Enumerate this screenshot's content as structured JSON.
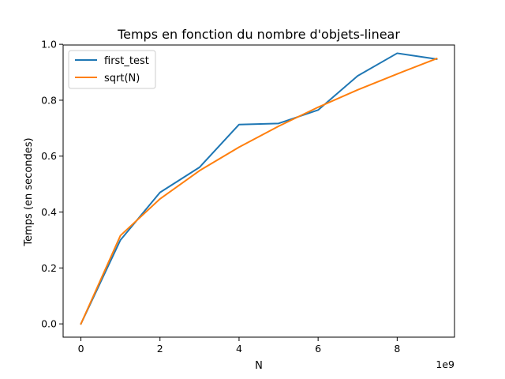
{
  "chart_data": {
    "type": "line",
    "title": "Temps en fonction du nombre d'objets-linear",
    "xlabel": "N",
    "ylabel": "Temps (en secondes)",
    "x_offset_label": "1e9",
    "x": [
      0,
      1000000000,
      2000000000,
      3000000000,
      4000000000,
      5000000000,
      6000000000,
      7000000000,
      8000000000,
      9000000000
    ],
    "xlim": [
      -450000000,
      9450000000
    ],
    "ylim": [
      -0.0475,
      0.9975
    ],
    "x_ticks": [
      0,
      2000000000,
      4000000000,
      6000000000,
      8000000000
    ],
    "x_tick_labels": [
      "0",
      "2",
      "4",
      "6",
      "8"
    ],
    "y_ticks": [
      0.0,
      0.2,
      0.4,
      0.6,
      0.8,
      1.0
    ],
    "y_tick_labels": [
      "0.0",
      "0.2",
      "0.4",
      "0.6",
      "0.8",
      "1.0"
    ],
    "grid": false,
    "legend_position": "top-left",
    "series": [
      {
        "name": "first_test",
        "color": "#1f77b4",
        "values": [
          0.0,
          0.3,
          0.47,
          0.56,
          0.713,
          0.717,
          0.765,
          0.887,
          0.968,
          0.947
        ]
      },
      {
        "name": "sqrt(N)",
        "color": "#ff7f0e",
        "values": [
          0.0,
          0.316,
          0.447,
          0.548,
          0.632,
          0.707,
          0.775,
          0.837,
          0.894,
          0.949
        ]
      }
    ]
  }
}
